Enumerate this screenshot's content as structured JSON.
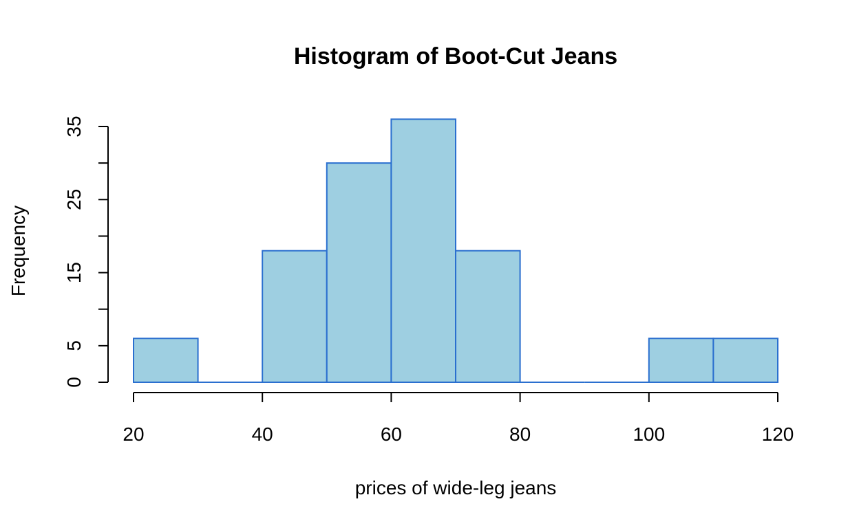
{
  "chart_data": {
    "type": "bar",
    "title": "Histogram of Boot-Cut Jeans",
    "xlabel": "prices of wide-leg jeans",
    "ylabel": "Frequency",
    "bins": [
      [
        20,
        30
      ],
      [
        30,
        40
      ],
      [
        40,
        50
      ],
      [
        50,
        60
      ],
      [
        60,
        70
      ],
      [
        70,
        80
      ],
      [
        80,
        90
      ],
      [
        90,
        100
      ],
      [
        100,
        110
      ],
      [
        110,
        120
      ]
    ],
    "values": [
      6,
      0,
      18,
      30,
      36,
      18,
      0,
      0,
      6,
      6
    ],
    "xlim": [
      20,
      120
    ],
    "ylim": [
      0,
      35
    ],
    "x_ticks": [
      20,
      40,
      60,
      80,
      100,
      120
    ],
    "y_ticks": [
      0,
      5,
      10,
      15,
      20,
      25,
      30,
      35
    ],
    "y_tick_labels": [
      "0",
      "5",
      "",
      "15",
      "",
      "25",
      "",
      "35"
    ],
    "grid": false,
    "colors": {
      "fill": "#9ecfe1",
      "stroke": "#2a6fcf"
    }
  }
}
